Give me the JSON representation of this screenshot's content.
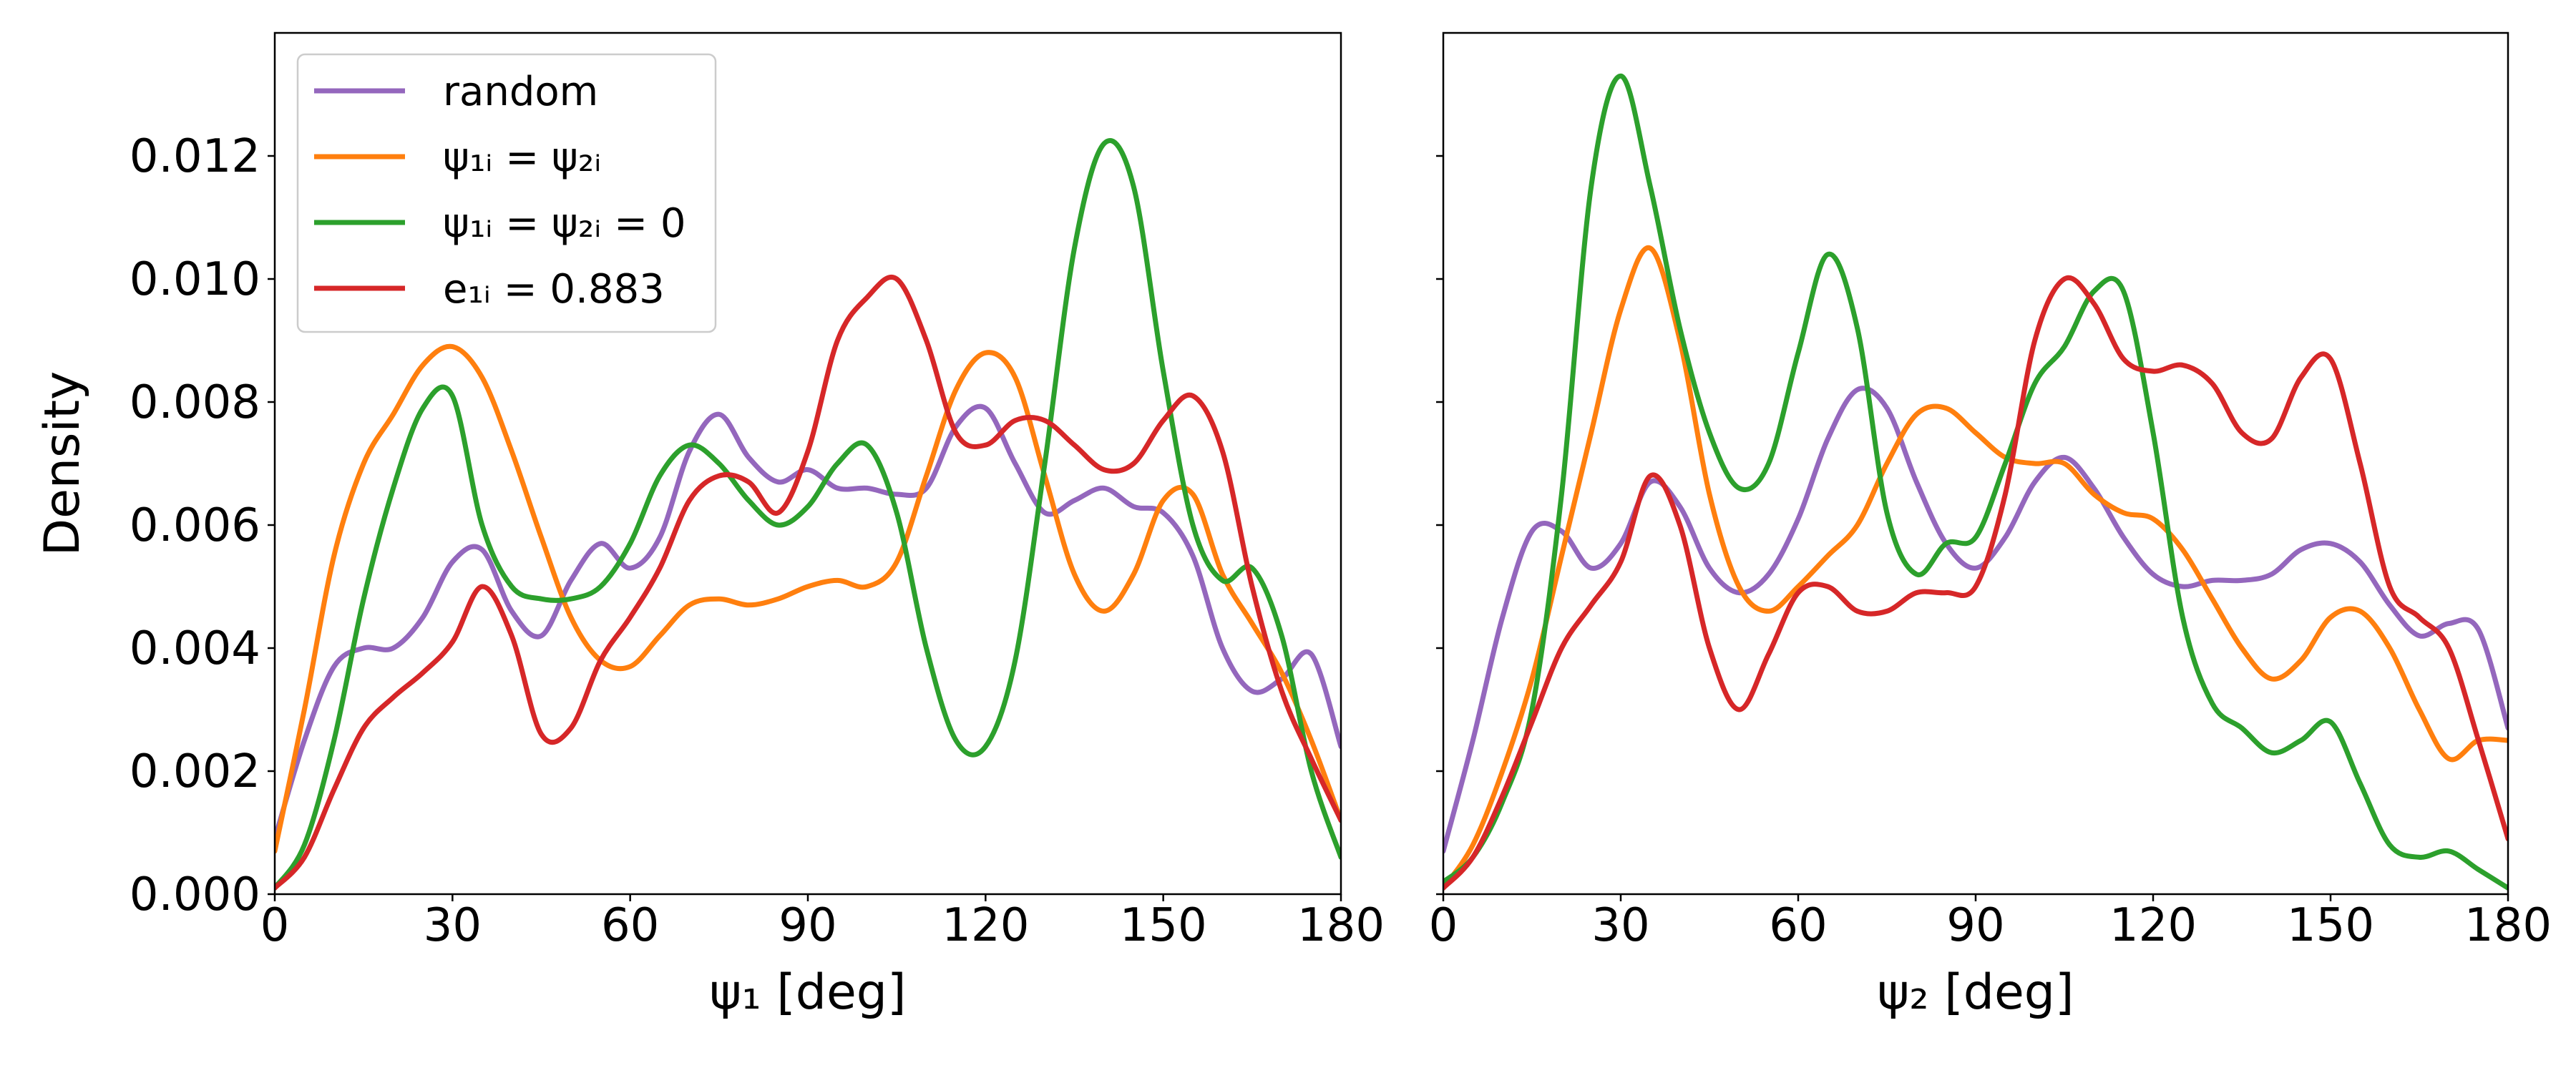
{
  "chart_data": [
    {
      "type": "line",
      "xlabel": "ψ₁ [deg]",
      "ylabel": "Density",
      "x": [
        0,
        5,
        10,
        15,
        20,
        25,
        30,
        35,
        40,
        45,
        50,
        55,
        60,
        65,
        70,
        75,
        80,
        85,
        90,
        95,
        100,
        105,
        110,
        115,
        120,
        125,
        130,
        135,
        140,
        145,
        150,
        155,
        160,
        165,
        170,
        175,
        180
      ],
      "xlim": [
        0,
        180
      ],
      "xticks": [
        0,
        30,
        60,
        90,
        120,
        150,
        180
      ],
      "ylim": [
        0,
        0.014
      ],
      "yticks": [
        {
          "value": 0,
          "label": "0.000"
        },
        0.002,
        0.004,
        0.006,
        0.008,
        {
          "value": 0.01,
          "label": "0.010"
        },
        0.012
      ],
      "legend": "upper left",
      "series": [
        {
          "name": "random",
          "color": "#9467bd",
          "values": [
            0.0009,
            0.0025,
            0.0037,
            0.004,
            0.004,
            0.0045,
            0.0054,
            0.0056,
            0.0046,
            0.0042,
            0.0051,
            0.0057,
            0.0053,
            0.0058,
            0.0072,
            0.0078,
            0.0071,
            0.0067,
            0.0069,
            0.0066,
            0.0066,
            0.0065,
            0.0066,
            0.0076,
            0.0079,
            0.007,
            0.0062,
            0.0064,
            0.0066,
            0.0063,
            0.0062,
            0.0055,
            0.004,
            0.0033,
            0.0035,
            0.0039,
            0.0024
          ]
        },
        {
          "name": "ψ₁ᵢ = ψ₂ᵢ",
          "color": "#ff7f0e",
          "values": [
            0.0007,
            0.003,
            0.0055,
            0.007,
            0.0078,
            0.0086,
            0.0089,
            0.0084,
            0.0072,
            0.0058,
            0.0045,
            0.0038,
            0.0037,
            0.0042,
            0.0047,
            0.0048,
            0.0047,
            0.0048,
            0.005,
            0.0051,
            0.005,
            0.0054,
            0.0068,
            0.0082,
            0.0088,
            0.0084,
            0.0068,
            0.0052,
            0.0046,
            0.0052,
            0.0064,
            0.0065,
            0.0052,
            0.0044,
            0.0036,
            0.0025,
            0.0012
          ]
        },
        {
          "name": "ψ₁ᵢ = ψ₂ᵢ = 0",
          "color": "#2ca02c",
          "values": [
            0.0001,
            0.0008,
            0.0025,
            0.0048,
            0.0066,
            0.0079,
            0.0081,
            0.006,
            0.005,
            0.0048,
            0.0048,
            0.005,
            0.0057,
            0.0068,
            0.0073,
            0.007,
            0.0064,
            0.006,
            0.0063,
            0.007,
            0.0073,
            0.0062,
            0.004,
            0.0025,
            0.0024,
            0.0038,
            0.007,
            0.0105,
            0.0122,
            0.0115,
            0.0085,
            0.006,
            0.0051,
            0.0053,
            0.0042,
            0.002,
            0.0006
          ]
        },
        {
          "name": "e₁ᵢ = 0.883",
          "color": "#d62728",
          "values": [
            0.0001,
            0.0006,
            0.0017,
            0.0027,
            0.0032,
            0.0036,
            0.0041,
            0.005,
            0.0042,
            0.0026,
            0.0027,
            0.0038,
            0.0045,
            0.0053,
            0.0064,
            0.0068,
            0.0067,
            0.0062,
            0.0072,
            0.009,
            0.0097,
            0.01,
            0.009,
            0.0075,
            0.0073,
            0.0077,
            0.0077,
            0.0073,
            0.0069,
            0.007,
            0.0077,
            0.0081,
            0.0072,
            0.005,
            0.0033,
            0.0022,
            0.0012
          ]
        }
      ]
    },
    {
      "type": "line",
      "xlabel": "ψ₂ [deg]",
      "x": [
        0,
        5,
        10,
        15,
        20,
        25,
        30,
        35,
        40,
        45,
        50,
        55,
        60,
        65,
        70,
        75,
        80,
        85,
        90,
        95,
        100,
        105,
        110,
        115,
        120,
        125,
        130,
        135,
        140,
        145,
        150,
        155,
        160,
        165,
        170,
        175,
        180
      ],
      "xlim": [
        0,
        180
      ],
      "xticks": [
        0,
        30,
        60,
        90,
        120,
        150,
        180
      ],
      "ylim": [
        0,
        0.014
      ],
      "yticks": [
        0,
        0.002,
        0.004,
        0.006,
        0.008,
        0.01,
        0.012
      ],
      "ytick_labels": false,
      "series": [
        {
          "color": "#9467bd",
          "values": [
            0.0007,
            0.0025,
            0.0045,
            0.0059,
            0.0059,
            0.0053,
            0.0057,
            0.0067,
            0.0063,
            0.0053,
            0.0049,
            0.0052,
            0.0061,
            0.0074,
            0.0082,
            0.0079,
            0.0067,
            0.0057,
            0.0053,
            0.0058,
            0.0067,
            0.0071,
            0.0066,
            0.0058,
            0.0052,
            0.005,
            0.0051,
            0.0051,
            0.0052,
            0.0056,
            0.0057,
            0.0054,
            0.0047,
            0.0042,
            0.0044,
            0.0043,
            0.0027
          ]
        },
        {
          "color": "#ff7f0e",
          "values": [
            0.0001,
            0.0008,
            0.002,
            0.0035,
            0.0055,
            0.0075,
            0.0095,
            0.0105,
            0.009,
            0.0065,
            0.005,
            0.0046,
            0.005,
            0.0055,
            0.006,
            0.007,
            0.0078,
            0.0079,
            0.0075,
            0.0071,
            0.007,
            0.007,
            0.0065,
            0.0062,
            0.0061,
            0.0056,
            0.0048,
            0.004,
            0.0035,
            0.0038,
            0.0045,
            0.0046,
            0.004,
            0.003,
            0.0022,
            0.0025,
            0.0025
          ]
        },
        {
          "color": "#2ca02c",
          "values": [
            0.0002,
            0.0006,
            0.0015,
            0.003,
            0.0065,
            0.0115,
            0.0133,
            0.0115,
            0.0092,
            0.0075,
            0.0066,
            0.007,
            0.0088,
            0.0104,
            0.0092,
            0.0062,
            0.0052,
            0.0057,
            0.0058,
            0.007,
            0.0083,
            0.0089,
            0.0098,
            0.0098,
            0.0075,
            0.0045,
            0.0031,
            0.0027,
            0.0023,
            0.0025,
            0.0028,
            0.0018,
            0.0008,
            0.0006,
            0.0007,
            0.0004,
            0.0001
          ]
        },
        {
          "color": "#d62728",
          "values": [
            0.0001,
            0.0006,
            0.0016,
            0.0028,
            0.004,
            0.0047,
            0.0054,
            0.0068,
            0.006,
            0.004,
            0.003,
            0.0039,
            0.0049,
            0.005,
            0.0046,
            0.0046,
            0.0049,
            0.0049,
            0.005,
            0.0065,
            0.009,
            0.01,
            0.0096,
            0.0087,
            0.0085,
            0.0086,
            0.0083,
            0.0075,
            0.0074,
            0.0084,
            0.0087,
            0.007,
            0.005,
            0.0045,
            0.004,
            0.0025,
            0.0009
          ]
        }
      ]
    }
  ]
}
